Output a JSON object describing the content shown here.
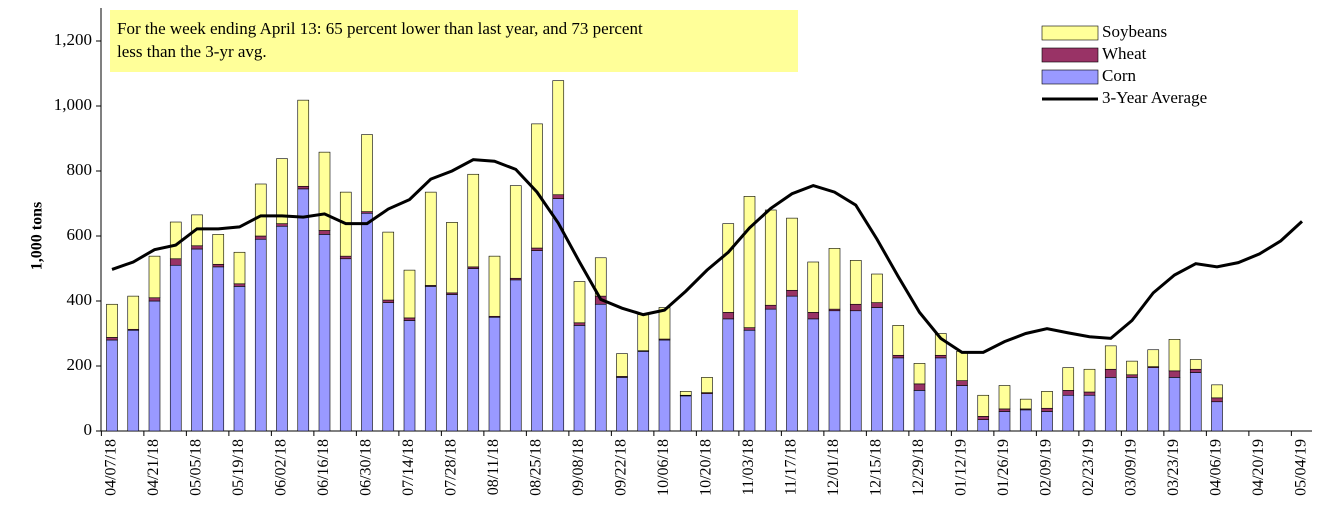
{
  "chart_data": {
    "type": "bar",
    "stacked": true,
    "annotation": [
      "For the week ending April 13: 65 percent lower than last year, and 73 percent",
      "less than the 3-yr avg."
    ],
    "ylabel": "1,000 tons",
    "categories": [
      "04/07/18",
      null,
      "04/21/18",
      null,
      "05/05/18",
      null,
      "05/19/18",
      null,
      "06/02/18",
      null,
      "06/16/18",
      null,
      "06/30/18",
      null,
      "07/14/18",
      null,
      "07/28/18",
      null,
      "08/11/18",
      null,
      "08/25/18",
      null,
      "09/08/18",
      null,
      "09/22/18",
      null,
      "10/06/18",
      null,
      "10/20/18",
      null,
      "11/03/18",
      null,
      "11/17/18",
      null,
      "12/01/18",
      null,
      "12/15/18",
      null,
      "12/29/18",
      null,
      "01/12/19",
      null,
      "01/26/19",
      null,
      "02/09/19",
      null,
      "02/23/19",
      null,
      "03/09/19",
      null,
      "03/23/19",
      null,
      "04/06/19",
      null,
      "04/20/19",
      null,
      "05/04/19"
    ],
    "ylim": [
      0,
      1200
    ],
    "yticks": [
      0,
      200,
      400,
      600,
      800,
      {
        "value": 1000,
        "label": "1,000"
      },
      {
        "value": 1200,
        "label": "1,200"
      }
    ],
    "grid": false,
    "legend": "top-right",
    "series": [
      {
        "name": "Soybeans",
        "color": "#ffff99",
        "values": [
          102,
          102,
          128,
          113,
          95,
          92,
          97,
          160,
          200,
          265,
          241,
          197,
          237,
          209,
          147,
          287,
          217,
          285,
          185,
          285,
          382,
          351,
          127,
          118,
          70,
          111,
          97,
          12,
          47,
          273,
          404,
          293,
          222,
          155,
          187,
          135,
          88,
          92,
          63,
          67,
          90,
          65,
          72,
          30,
          52,
          70,
          70,
          72,
          42,
          52,
          97,
          30,
          40,
          null,
          null,
          null,
          null
        ]
      },
      {
        "name": "Wheat",
        "color": "#993366",
        "values": [
          8,
          3,
          10,
          20,
          10,
          8,
          8,
          10,
          8,
          8,
          12,
          8,
          5,
          8,
          8,
          3,
          5,
          5,
          3,
          5,
          8,
          12,
          8,
          25,
          3,
          2,
          3,
          2,
          3,
          20,
          8,
          12,
          18,
          20,
          5,
          20,
          15,
          8,
          20,
          8,
          15,
          10,
          8,
          3,
          10,
          15,
          10,
          25,
          8,
          3,
          20,
          10,
          12,
          null,
          null,
          null,
          null
        ]
      },
      {
        "name": "Corn",
        "color": "#9999ff",
        "values": [
          280,
          310,
          400,
          510,
          560,
          505,
          445,
          590,
          630,
          745,
          605,
          530,
          670,
          395,
          340,
          445,
          420,
          500,
          350,
          465,
          555,
          715,
          325,
          390,
          165,
          245,
          280,
          108,
          115,
          345,
          310,
          375,
          415,
          345,
          370,
          370,
          380,
          225,
          125,
          225,
          140,
          35,
          60,
          65,
          60,
          110,
          110,
          165,
          165,
          195,
          165,
          180,
          90,
          null,
          null,
          null,
          null
        ]
      },
      {
        "name": "3-Year Average",
        "type": "line",
        "color": "#000000",
        "values": [
          497,
          520,
          558,
          572,
          622,
          622,
          628,
          662,
          662,
          658,
          668,
          638,
          638,
          683,
          712,
          775,
          800,
          835,
          830,
          805,
          735,
          640,
          520,
          405,
          378,
          358,
          372,
          430,
          495,
          550,
          625,
          685,
          730,
          755,
          735,
          695,
          590,
          475,
          365,
          285,
          242,
          242,
          275,
          300,
          315,
          302,
          290,
          285,
          340,
          425,
          480,
          515,
          505,
          518,
          545,
          585,
          645
        ]
      }
    ]
  }
}
